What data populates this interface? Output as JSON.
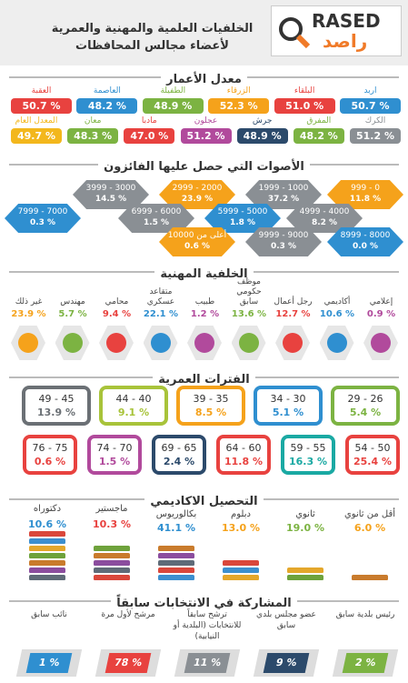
{
  "header": {
    "title": "الخلفيات العلمية والمهنية والعمرية لأعضاء مجالس المحافظات",
    "logo_latin": "RASED",
    "logo_arabic": "راصد"
  },
  "ages": {
    "title": "معدل الأعمار",
    "items": [
      {
        "name": "اربد",
        "value": "50.7 %"
      },
      {
        "name": "البلقاء",
        "value": "51.0 %"
      },
      {
        "name": "الزرقاء",
        "value": "52.3 %"
      },
      {
        "name": "الطفيلة",
        "value": "48.9 %"
      },
      {
        "name": "العاصمة",
        "value": "48.2 %"
      },
      {
        "name": "العقبة",
        "value": "50.7 %"
      },
      {
        "name": "الكرك",
        "value": "51.2 %"
      },
      {
        "name": "المفرق",
        "value": "48.2 %"
      },
      {
        "name": "جرش",
        "value": "48.9 %"
      },
      {
        "name": "عجلون",
        "value": "51.2 %"
      },
      {
        "name": "مادبا",
        "value": "47.0 %"
      },
      {
        "name": "معان",
        "value": "48.3 %"
      },
      {
        "name": "المعدل العام",
        "value": "49.7 %"
      }
    ]
  },
  "votes": {
    "title": "الأصوات التي حصل عليها الفائزون",
    "items": [
      {
        "range": "999 - 0",
        "value": "11.8 %"
      },
      {
        "range": "1999 - 1000",
        "value": "37.2 %"
      },
      {
        "range": "2999 - 2000",
        "value": "23.9 %"
      },
      {
        "range": "3999 - 3000",
        "value": "14.5 %"
      },
      {
        "range": "4999 - 4000",
        "value": "8.2 %"
      },
      {
        "range": "5999 - 5000",
        "value": "1.8 %"
      },
      {
        "range": "6999 - 6000",
        "value": "1.5 %"
      },
      {
        "range": "7999 - 7000",
        "value": "0.3 %"
      },
      {
        "range": "8999 - 8000",
        "value": "0.0 %"
      },
      {
        "range": "9999 - 9000",
        "value": "0.3 %"
      },
      {
        "range": "أعلى من 10000",
        "value": "0.6 %"
      }
    ]
  },
  "professions": {
    "title": "الخلفية المهنية",
    "items": [
      {
        "name": "إعلامي",
        "value": "0.9 %"
      },
      {
        "name": "أكاديمي",
        "value": "10.6 %"
      },
      {
        "name": "رجل أعمال",
        "value": "12.7 %"
      },
      {
        "name": "موظف حكومي سابق",
        "value": "13.6 %"
      },
      {
        "name": "طبيب",
        "value": "1.2 %"
      },
      {
        "name": "متقاعد عسكري",
        "value": "22.1 %"
      },
      {
        "name": "محامي",
        "value": "9.4 %"
      },
      {
        "name": "مهندس",
        "value": "5.7 %"
      },
      {
        "name": "غير ذلك",
        "value": "23.9 %"
      }
    ]
  },
  "age_groups": {
    "title": "الفترات العمرية",
    "items": [
      {
        "range": "29 - 26",
        "value": "5.4 %"
      },
      {
        "range": "34 - 30",
        "value": "5.1 %"
      },
      {
        "range": "39 - 35",
        "value": "8.5 %"
      },
      {
        "range": "44 - 40",
        "value": "9.1 %"
      },
      {
        "range": "49 - 45",
        "value": "13.9 %"
      },
      {
        "range": "54 - 50",
        "value": "25.4 %"
      },
      {
        "range": "59 - 55",
        "value": "16.3 %"
      },
      {
        "range": "64 - 60",
        "value": "11.8 %"
      },
      {
        "range": "69 - 65",
        "value": "2.4 %"
      },
      {
        "range": "74 - 70",
        "value": "1.5 %"
      },
      {
        "range": "76 - 75",
        "value": "0.6 %"
      }
    ]
  },
  "education": {
    "title": "التحصيل الاكاديمي",
    "items": [
      {
        "name": "أقل من ثانوي",
        "value": "6.0 %"
      },
      {
        "name": "ثانوي",
        "value": "19.0 %"
      },
      {
        "name": "دبلوم",
        "value": "13.0 %"
      },
      {
        "name": "بكالوريوس",
        "value": "41.1 %"
      },
      {
        "name": "ماجستير",
        "value": "10.3 %"
      },
      {
        "name": "دكتوراه",
        "value": "10.6 %"
      }
    ]
  },
  "participation": {
    "title": "المشاركة في الانتخابات سابقاً",
    "items": [
      {
        "name": "رئيس بلدية سابق",
        "value": "2 %"
      },
      {
        "name": "عضو مجلس بلدي سابق",
        "value": "9 %"
      },
      {
        "name": "ترشح سابقاً للانتخابات (البلدية أو النيابية)",
        "value": "11 %"
      },
      {
        "name": "مرشح لأول مرة",
        "value": "78 %"
      },
      {
        "name": "نائب سابق",
        "value": "1 %"
      }
    ]
  }
}
